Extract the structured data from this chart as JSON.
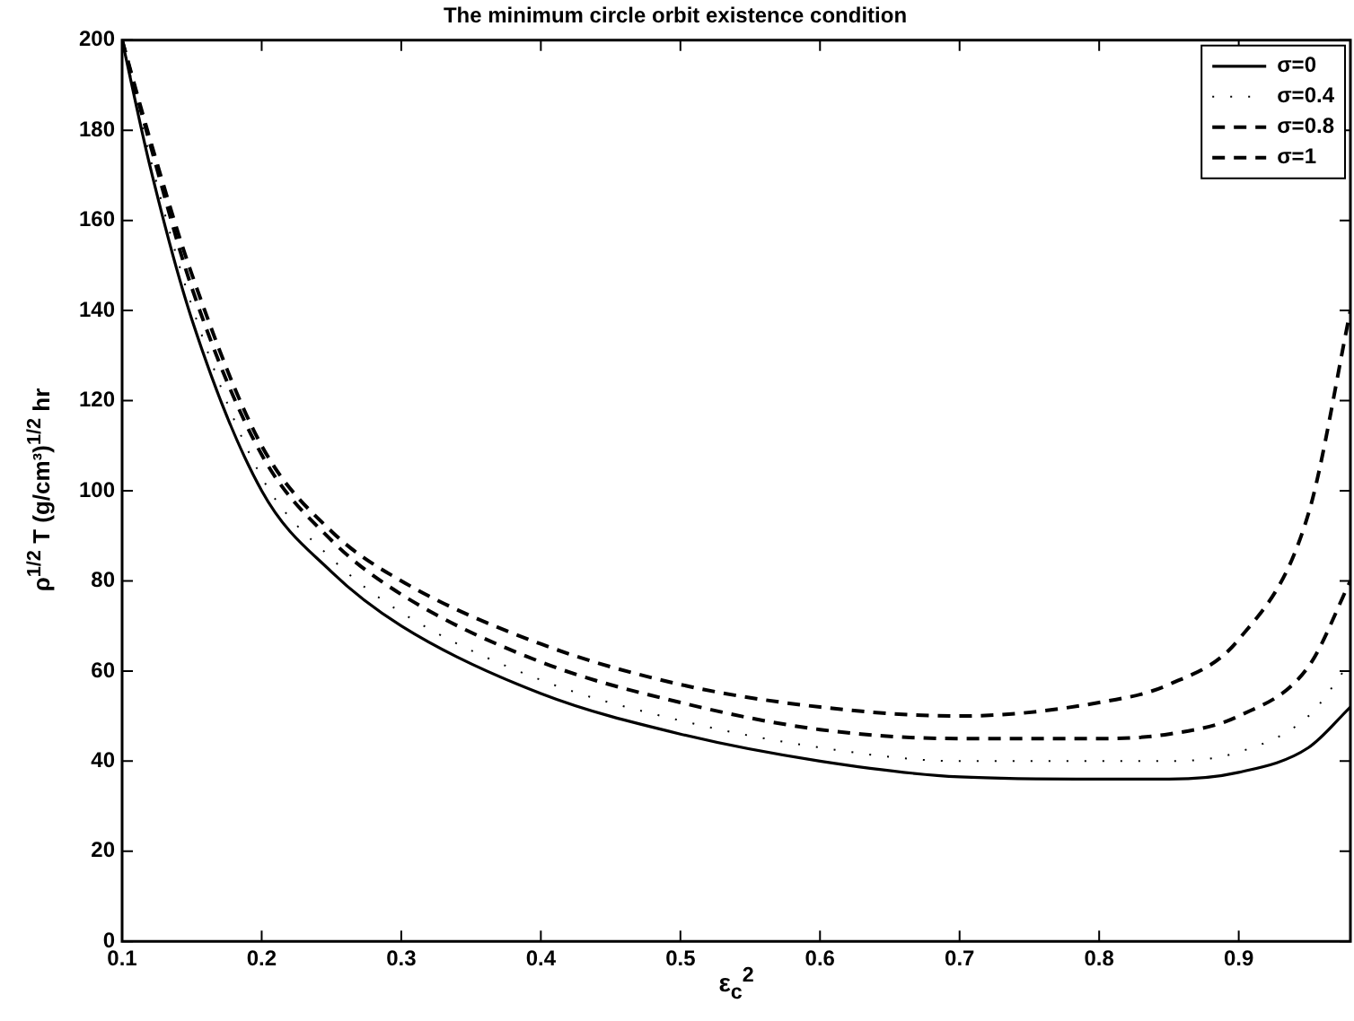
{
  "chart_data": {
    "type": "line",
    "title": "The minimum circle orbit existence condition",
    "xlabel": "ε$_{c}$$^{2}$",
    "ylabel": "ρ$^{1/2}$ T (g/cm³)$^{1/2}$ hr",
    "xlim": [
      0.1,
      0.98
    ],
    "xticks": [
      0.1,
      0.2,
      0.3,
      0.4,
      0.5,
      0.6,
      0.7,
      0.8,
      0.9
    ],
    "ylim": [
      0,
      200
    ],
    "yticks": [
      0,
      20,
      40,
      60,
      80,
      100,
      120,
      140,
      160,
      180,
      200
    ],
    "grid": false,
    "legend": "top right",
    "marker": "none",
    "x": [
      0.1,
      0.12,
      0.15,
      0.2,
      0.25,
      0.3,
      0.4,
      0.5,
      0.6,
      0.7,
      0.8,
      0.85,
      0.9,
      0.95,
      0.98
    ],
    "series": [
      {
        "name": "σ=0",
        "color": "#000000",
        "line_style": "solid",
        "values": [
          200,
          172,
          138,
          100,
          82,
          70,
          55,
          46,
          40,
          36.5,
          36,
          36,
          37.5,
          43,
          52
        ]
      },
      {
        "name": "σ=0.4",
        "color": "#000000",
        "line_style": "dotted",
        "values": [
          200,
          174,
          141,
          103,
          85,
          73,
          58,
          49,
          43,
          40,
          40,
          40,
          42,
          50,
          62
        ]
      },
      {
        "name": "σ=0.8",
        "color": "#000000",
        "line_style": "dashed",
        "values": [
          200,
          177,
          145,
          108,
          89,
          77,
          62,
          53,
          47,
          45,
          45,
          46,
          50,
          61,
          80
        ]
      },
      {
        "name": "σ=1",
        "color": "#000000",
        "line_style": "dashed",
        "values": [
          200,
          178,
          148,
          110,
          91,
          80,
          66,
          57,
          52,
          50,
          53,
          57,
          67,
          95,
          140
        ]
      }
    ]
  }
}
